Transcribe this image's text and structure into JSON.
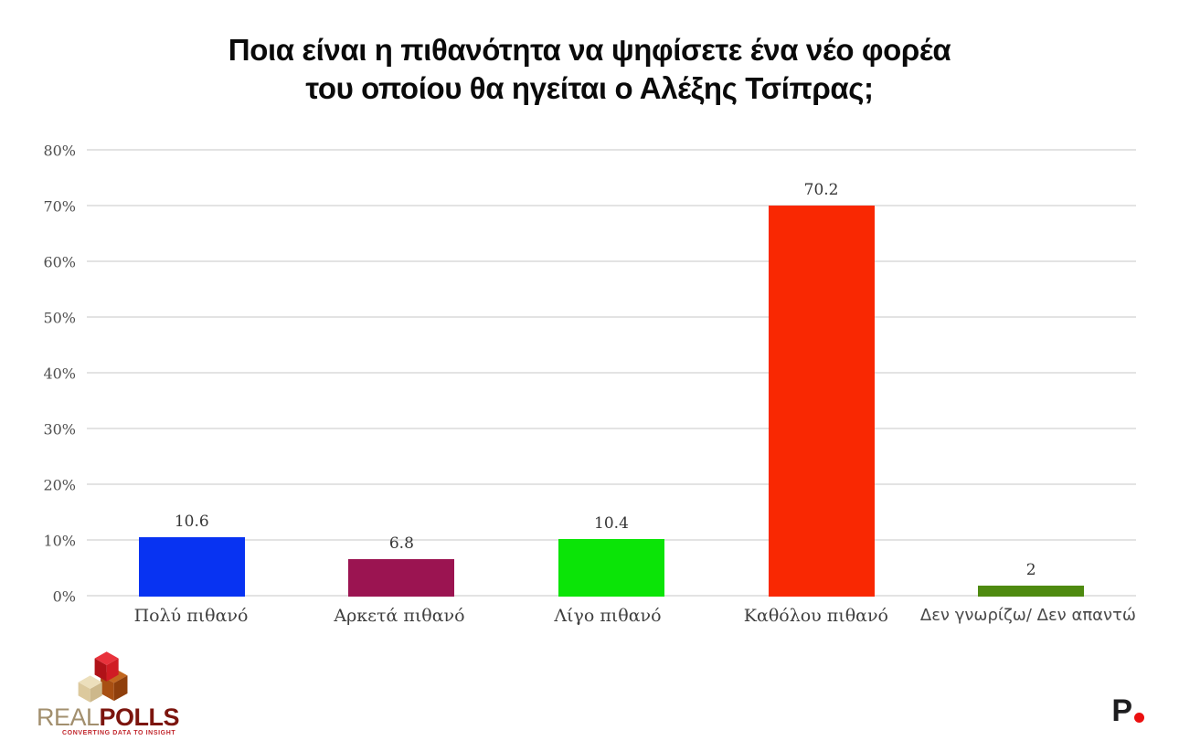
{
  "title": {
    "line1": "Ποια είναι η πιθανότητα να ψηφίσετε ένα νέο φορέα",
    "line2": "του οποίου θα ηγείται ο Αλέξης Τσίπρας;"
  },
  "chart_data": {
    "type": "bar",
    "title": "Ποια είναι η πιθανότητα να ψηφίσετε ένα νέο φορέα του οποίου θα ηγείται ο Αλέξης Τσίπρας;",
    "categories": [
      "Πολύ πιθανό",
      "Αρκετά πιθανό",
      "Λίγο πιθανό",
      "Καθόλου πιθανό",
      "Δεν γνωρίζω/ Δεν απαντώ"
    ],
    "values": [
      10.6,
      6.8,
      10.4,
      70.2,
      2
    ],
    "colors": [
      "#0833f2",
      "#9b1451",
      "#0be407",
      "#f92802",
      "#4e8a10"
    ],
    "xlabel": "",
    "ylabel": "",
    "ylim": [
      0,
      80
    ],
    "yticks": [
      "0%",
      "10%",
      "20%",
      "30%",
      "40%",
      "50%",
      "60%",
      "70%",
      "80%"
    ],
    "grid": true,
    "legend": false,
    "gridline_color": "#e3e3e3"
  },
  "branding": {
    "left_logo": {
      "part1": "REAL",
      "part2": "POLLS",
      "tagline": "CONVERTING DATA TO INSIGHT"
    },
    "right_logo": {
      "letter": "P"
    }
  }
}
